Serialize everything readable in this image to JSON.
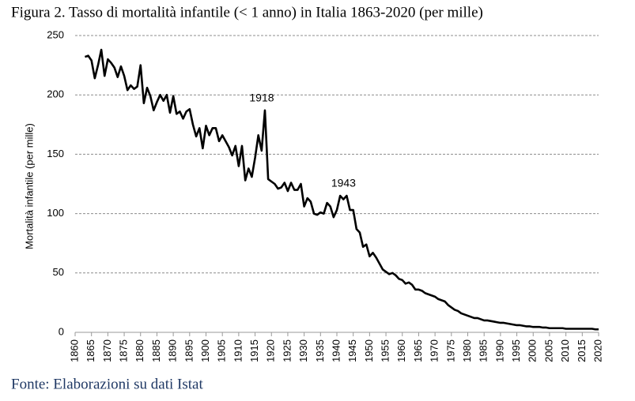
{
  "chart_data": {
    "type": "line",
    "title": "Figura 2. Tasso di mortalità infantile (< 1 anno) in Italia 1863-2020 (per mille)",
    "y_label": "Mortalità infantile (per mille)",
    "source": "Fonte: Elaborazioni su dati Istat",
    "color": "#000000",
    "grid": true,
    "xlim": [
      1860,
      2020
    ],
    "xticks": [
      1860,
      1865,
      1870,
      1875,
      1880,
      1885,
      1890,
      1895,
      1900,
      1905,
      1910,
      1915,
      1920,
      1925,
      1930,
      1935,
      1940,
      1945,
      1950,
      1955,
      1960,
      1965,
      1970,
      1975,
      1980,
      1985,
      1990,
      1995,
      2000,
      2005,
      2010,
      2015,
      2020
    ],
    "ylim": [
      0,
      250
    ],
    "yticks": [
      0,
      50,
      100,
      150,
      200,
      250
    ],
    "x": [
      1863,
      1864,
      1865,
      1866,
      1867,
      1868,
      1869,
      1870,
      1871,
      1872,
      1873,
      1874,
      1875,
      1876,
      1877,
      1878,
      1879,
      1880,
      1881,
      1882,
      1883,
      1884,
      1885,
      1886,
      1887,
      1888,
      1889,
      1890,
      1891,
      1892,
      1893,
      1894,
      1895,
      1896,
      1897,
      1898,
      1899,
      1900,
      1901,
      1902,
      1903,
      1904,
      1905,
      1906,
      1907,
      1908,
      1909,
      1910,
      1911,
      1912,
      1913,
      1914,
      1915,
      1916,
      1917,
      1918,
      1919,
      1920,
      1921,
      1922,
      1923,
      1924,
      1925,
      1926,
      1927,
      1928,
      1929,
      1930,
      1931,
      1932,
      1933,
      1934,
      1935,
      1936,
      1937,
      1938,
      1939,
      1940,
      1941,
      1942,
      1943,
      1944,
      1945,
      1946,
      1947,
      1948,
      1949,
      1950,
      1951,
      1952,
      1953,
      1954,
      1955,
      1956,
      1957,
      1958,
      1959,
      1960,
      1961,
      1962,
      1963,
      1964,
      1965,
      1966,
      1967,
      1968,
      1969,
      1970,
      1971,
      1972,
      1973,
      1974,
      1975,
      1976,
      1977,
      1978,
      1979,
      1980,
      1981,
      1982,
      1983,
      1984,
      1985,
      1986,
      1987,
      1988,
      1989,
      1990,
      1991,
      1992,
      1993,
      1994,
      1995,
      1996,
      1997,
      1998,
      1999,
      2000,
      2001,
      2002,
      2003,
      2004,
      2005,
      2006,
      2007,
      2008,
      2009,
      2010,
      2011,
      2012,
      2013,
      2014,
      2015,
      2016,
      2017,
      2018,
      2019,
      2020
    ],
    "values": [
      232,
      233,
      229,
      214,
      225,
      238,
      216,
      230,
      227,
      223,
      215,
      224,
      216,
      204,
      208,
      205,
      207,
      225,
      193,
      206,
      199,
      187,
      194,
      200,
      195,
      200,
      185,
      199,
      184,
      186,
      180,
      186,
      188,
      175,
      165,
      172,
      155,
      174,
      166,
      172,
      172,
      161,
      166,
      161,
      156,
      149,
      157,
      140,
      157,
      128,
      138,
      131,
      147,
      166,
      153,
      187,
      129,
      127,
      125,
      121,
      122,
      126,
      119,
      126,
      120,
      120,
      125,
      106,
      113,
      110,
      100,
      99,
      101,
      100,
      109,
      106,
      97,
      103,
      115,
      112,
      115,
      103,
      103,
      87,
      84,
      72,
      74,
      64,
      67,
      63,
      58,
      53,
      51,
      49,
      50,
      48,
      45,
      44,
      41,
      42,
      40,
      36,
      36,
      35,
      33,
      32,
      31,
      30,
      28,
      27,
      26,
      23,
      21,
      19,
      18,
      16,
      15,
      14,
      13,
      12,
      12,
      11,
      10,
      10,
      9.5,
      9,
      8.5,
      8,
      8,
      7.5,
      7,
      6.5,
      6,
      6,
      5.5,
      5,
      5,
      4.5,
      4.5,
      4.5,
      4,
      4,
      3.5,
      3.5,
      3.5,
      3.5,
      3.5,
      3,
      3,
      3,
      3,
      3,
      3,
      3,
      3,
      3,
      2.5,
      2.5
    ],
    "annotations": [
      {
        "label": "1918",
        "x": 1918
      },
      {
        "label": "1943",
        "x": 1943
      }
    ]
  }
}
